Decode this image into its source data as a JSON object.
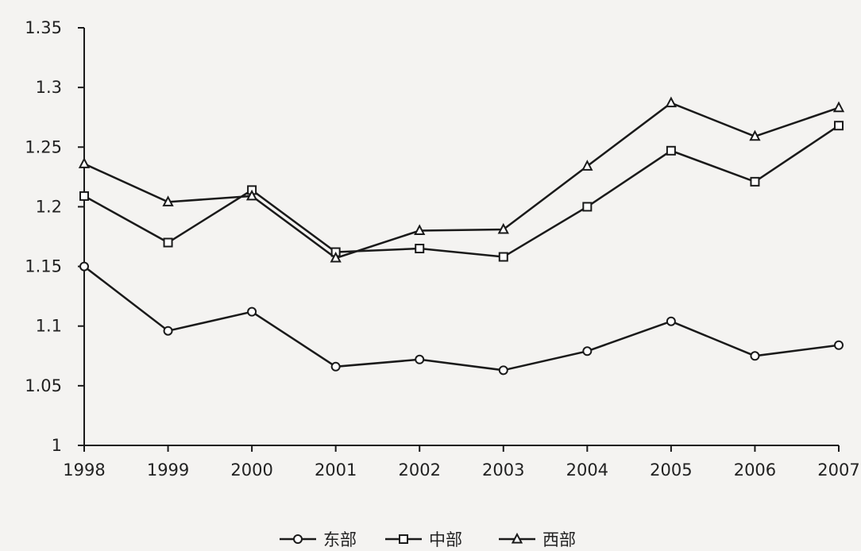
{
  "chart_data": {
    "type": "line",
    "title": "",
    "xlabel": "",
    "ylabel": "",
    "x": [
      "1998",
      "1999",
      "2000",
      "2001",
      "2002",
      "2003",
      "2004",
      "2005",
      "2006",
      "2007"
    ],
    "ylim": [
      1,
      1.35
    ],
    "yticks": [
      "1",
      "1.05",
      "1.1",
      "1.15",
      "1.2",
      "1.25",
      "1.3",
      "1.35"
    ],
    "grid": false,
    "legend_position": "bottom",
    "series": [
      {
        "name": "东部",
        "marker": "circle",
        "values": [
          1.15,
          1.096,
          1.112,
          1.066,
          1.072,
          1.063,
          1.079,
          1.104,
          1.075,
          1.084
        ]
      },
      {
        "name": "中部",
        "marker": "square",
        "values": [
          1.209,
          1.17,
          1.214,
          1.162,
          1.165,
          1.158,
          1.2,
          1.247,
          1.221,
          1.268
        ]
      },
      {
        "name": "西部",
        "marker": "triangle",
        "values": [
          1.236,
          1.204,
          1.209,
          1.157,
          1.18,
          1.181,
          1.234,
          1.287,
          1.259,
          1.283
        ]
      }
    ],
    "colors": {
      "line": "#1a1a1a",
      "marker_fill": "#ffffff",
      "background": "#f4f3f1"
    }
  }
}
